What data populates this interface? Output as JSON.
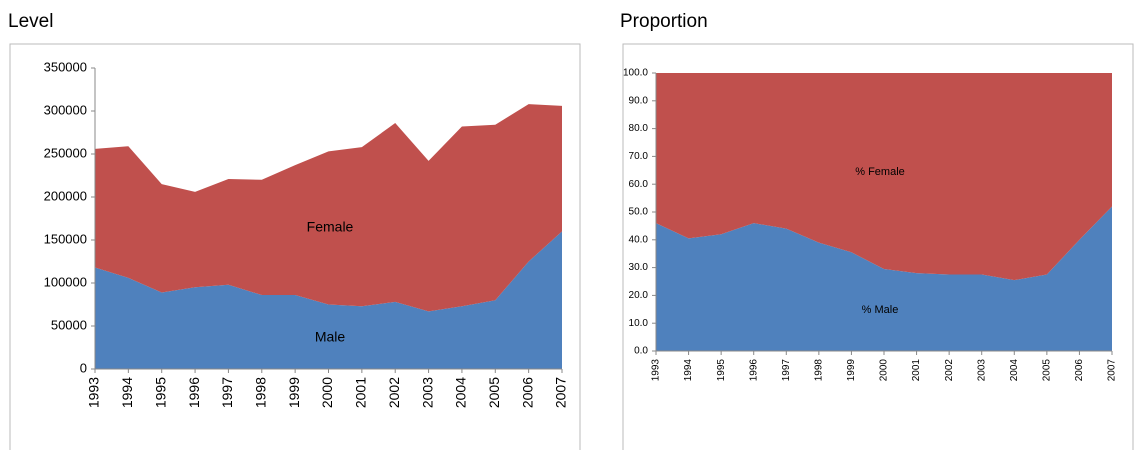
{
  "chart_data": [
    {
      "type": "area",
      "title": "Level",
      "categories": [
        "1993",
        "1994",
        "1995",
        "1996",
        "1997",
        "1998",
        "1999",
        "2000",
        "2001",
        "2002",
        "2003",
        "2004",
        "2005",
        "2006",
        "2007"
      ],
      "series": [
        {
          "name": "Male",
          "color": "#4f81bd",
          "values": [
            118000,
            106000,
            89000,
            95000,
            98000,
            86000,
            86000,
            75000,
            73000,
            78000,
            67000,
            73000,
            80000,
            125000,
            160000
          ]
        },
        {
          "name": "Female",
          "color": "#c0504d",
          "values": [
            138000,
            153000,
            126000,
            111000,
            123000,
            134000,
            151000,
            178000,
            185000,
            208000,
            175000,
            209000,
            204000,
            183000,
            146000
          ]
        }
      ],
      "ylim": [
        0,
        350000
      ],
      "yticks": [
        0,
        50000,
        100000,
        150000,
        200000,
        250000,
        300000,
        350000
      ],
      "grid": false,
      "stacked": true
    },
    {
      "type": "area",
      "title": "Proportion",
      "categories": [
        "1993",
        "1994",
        "1995",
        "1996",
        "1997",
        "1998",
        "1999",
        "2000",
        "2001",
        "2002",
        "2003",
        "2004",
        "2005",
        "2006",
        "2007"
      ],
      "series": [
        {
          "name": "% Male",
          "color": "#4f81bd",
          "values": [
            46,
            40.5,
            42,
            46,
            44,
            39,
            35.5,
            29.5,
            28,
            27.5,
            27.5,
            25.5,
            27.5,
            40,
            52
          ]
        },
        {
          "name": "% Female",
          "color": "#c0504d",
          "values": [
            54,
            59.5,
            58,
            54,
            56,
            61,
            64.5,
            70.5,
            72,
            72.5,
            72.5,
            74.5,
            72.5,
            60,
            48
          ]
        }
      ],
      "ylim": [
        0,
        100
      ],
      "yticks": [
        {
          "value": 0,
          "label": "0.0"
        },
        {
          "value": 10,
          "label": "10.0"
        },
        {
          "value": 20,
          "label": "20.0"
        },
        {
          "value": 30,
          "label": "30.0"
        },
        {
          "value": 40,
          "label": "40.0"
        },
        {
          "value": 50,
          "label": "50.0"
        },
        {
          "value": 60,
          "label": "60.0"
        },
        {
          "value": 70,
          "label": "70.0"
        },
        {
          "value": 80,
          "label": "80.0"
        },
        {
          "value": 90,
          "label": "90.0"
        },
        {
          "value": 100,
          "label": "100.0"
        }
      ],
      "grid": false,
      "stacked": true
    }
  ]
}
